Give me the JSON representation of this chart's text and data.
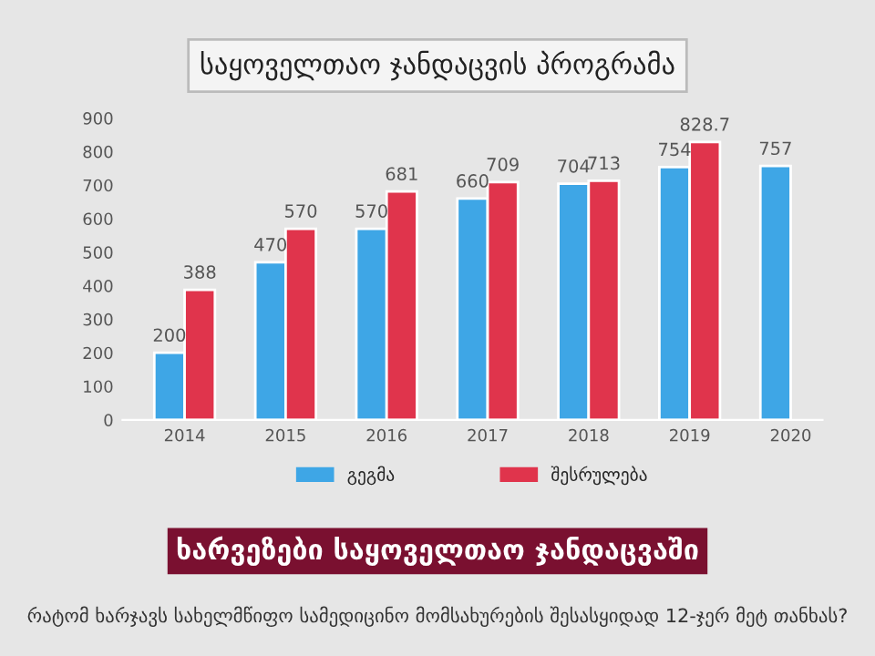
{
  "chart_data": {
    "type": "bar",
    "title": "საყოველთაო ჯანდაცვის პროგრამა",
    "categories": [
      "2014",
      "2015",
      "2016",
      "2017",
      "2018",
      "2019",
      "2020"
    ],
    "series": [
      {
        "name": "გეგმა",
        "color": "#3ea6e6",
        "values": [
          200,
          470,
          570,
          660,
          704,
          754,
          757
        ]
      },
      {
        "name": "შესრულება",
        "color": "#e0344c",
        "values": [
          388,
          570,
          681,
          709,
          713,
          828.7,
          null
        ]
      }
    ],
    "ylim": [
      0,
      900
    ],
    "yticks": [
      0,
      100,
      200,
      300,
      400,
      500,
      600,
      700,
      800,
      900
    ],
    "data_labels": true,
    "grid": false,
    "legend": "bottom",
    "annotations": [
      "ხარვეზები საყოველთაო ჯანდაცვაში",
      "რატომ ხარჯავს სახელმწიფო სამედიცინო მომსახურების შესასყიდად 12-ჯერ მეტ თანხას?"
    ]
  }
}
